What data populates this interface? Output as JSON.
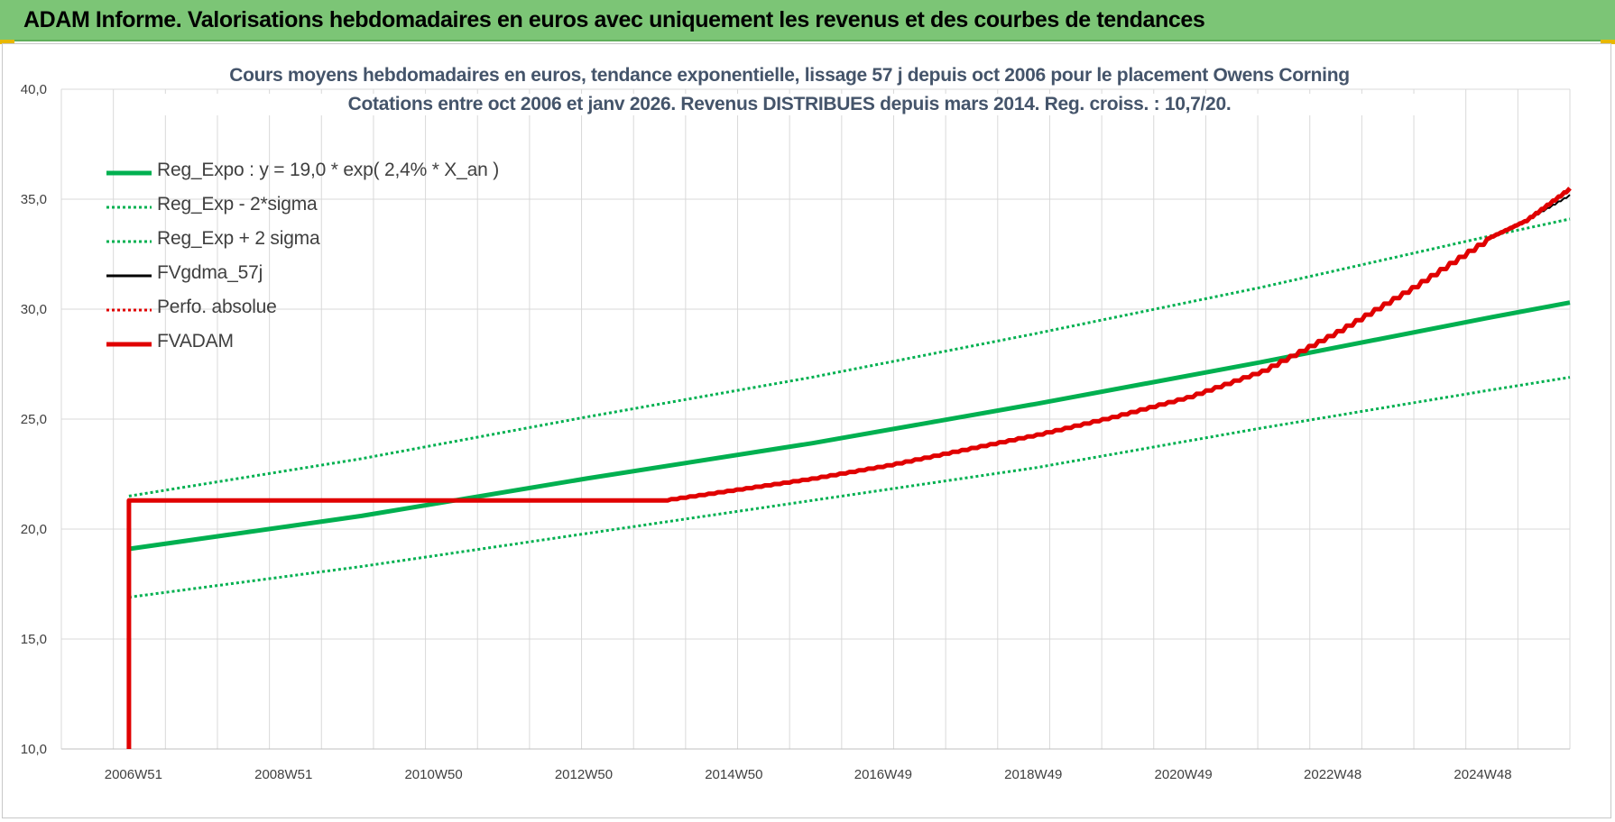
{
  "banner": {
    "title": "ADAM Informe. Valorisations hebdomadaires en euros avec uniquement les revenus et des courbes de tendances"
  },
  "chart_data": {
    "type": "line",
    "title": "Cours moyens hebdomadaires en euros, tendance exponentielle, lissage 57 j depuis oct 2006 pour le placement Owens Corning",
    "subtitle": "Cotations entre oct 2006 et janv 2026. Revenus DISTRIBUES depuis mars 2014. Reg. croiss. : 10,7/20.",
    "ylim": [
      10,
      40
    ],
    "y_ticks": [
      "10,0",
      "15,0",
      "20,0",
      "25,0",
      "30,0",
      "35,0",
      "40,0"
    ],
    "y_tick_values": [
      10,
      15,
      20,
      25,
      30,
      35,
      40
    ],
    "xlim": [
      2006.0,
      2026.1
    ],
    "x_ticks": [
      "2006W51",
      "2008W51",
      "2010W50",
      "2012W50",
      "2014W50",
      "2016W49",
      "2018W49",
      "2020W49",
      "2022W48",
      "2024W48"
    ],
    "x_tick_values": [
      2006.96,
      2008.96,
      2010.96,
      2012.96,
      2014.96,
      2016.95,
      2018.95,
      2020.95,
      2022.94,
      2024.94
    ],
    "grid": true,
    "legend_position": "top-left",
    "colors": {
      "green": "#00b050",
      "black": "#000000",
      "red": "#e00000",
      "grid": "#d9d9d9"
    },
    "series": [
      {
        "name": "Reg_Expo : y = 19,0 * exp( 2,4% *  X_an )",
        "style": "solid-thick",
        "color": "#00b050",
        "x": [
          2006.9,
          2010.0,
          2013.0,
          2016.0,
          2019.0,
          2022.0,
          2025.0,
          2026.1
        ],
        "y": [
          19.1,
          20.6,
          22.3,
          23.9,
          25.7,
          27.6,
          29.6,
          30.3
        ]
      },
      {
        "name": "Reg_Exp - 2*sigma",
        "style": "dotted",
        "color": "#00b050",
        "x": [
          2006.9,
          2010.0,
          2013.0,
          2016.0,
          2019.0,
          2022.0,
          2025.0,
          2026.1
        ],
        "y": [
          16.9,
          18.3,
          19.8,
          21.3,
          22.8,
          24.6,
          26.3,
          26.9
        ]
      },
      {
        "name": "Reg_Exp + 2 sigma",
        "style": "dotted",
        "color": "#00b050",
        "x": [
          2006.9,
          2010.0,
          2013.0,
          2016.0,
          2019.0,
          2022.0,
          2025.0,
          2026.1
        ],
        "y": [
          21.5,
          23.2,
          25.1,
          26.9,
          28.9,
          31.0,
          33.3,
          34.1
        ]
      },
      {
        "name": "FVgdma_57j",
        "style": "solid",
        "color": "#000000",
        "x": [
          2006.9,
          2014.0,
          2015.0,
          2016.0,
          2017.0,
          2018.0,
          2019.0,
          2020.0,
          2021.0,
          2022.0,
          2023.0,
          2024.0,
          2025.0,
          2025.5,
          2026.1
        ],
        "y": [
          21.3,
          21.3,
          21.8,
          22.3,
          22.9,
          23.6,
          24.3,
          25.1,
          26.0,
          27.2,
          29.0,
          31.0,
          33.2,
          34.0,
          35.2
        ]
      },
      {
        "name": "Perfo. absolue",
        "style": "dotted",
        "color": "#e00000",
        "x": [],
        "y": []
      },
      {
        "name": "FVADAM",
        "style": "solid-thick",
        "color": "#e00000",
        "x": [
          2006.9,
          2006.9,
          2014.0,
          2015.0,
          2016.0,
          2017.0,
          2018.0,
          2019.0,
          2020.0,
          2021.0,
          2022.0,
          2023.0,
          2024.0,
          2025.0,
          2025.5,
          2026.1
        ],
        "y": [
          10.0,
          21.3,
          21.3,
          21.8,
          22.3,
          22.9,
          23.6,
          24.3,
          25.1,
          26.0,
          27.2,
          29.0,
          31.0,
          33.2,
          34.0,
          35.5
        ]
      }
    ]
  }
}
